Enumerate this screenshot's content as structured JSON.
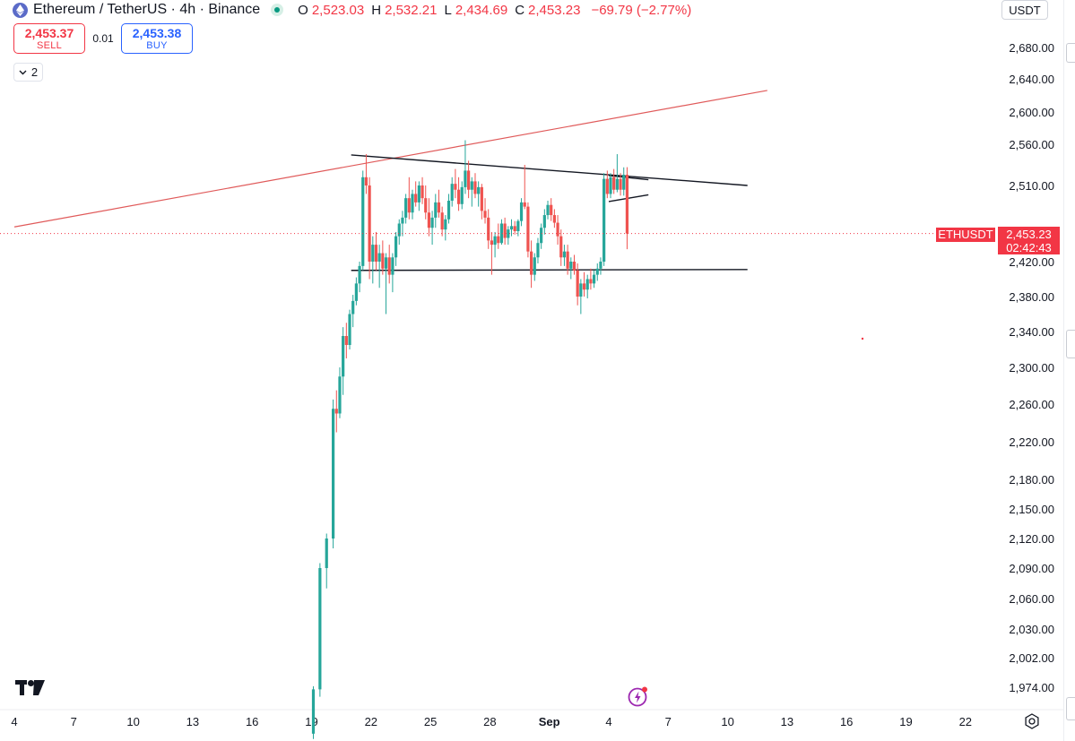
{
  "header": {
    "symbol_title": "Ethereum / TetherUS · 4h · Binance",
    "ohlc": [
      {
        "key": "O",
        "value": "2,523.03"
      },
      {
        "key": "H",
        "value": "2,532.21"
      },
      {
        "key": "L",
        "value": "2,434.69"
      },
      {
        "key": "C",
        "value": "2,453.23"
      },
      {
        "key": "",
        "value": "−69.79 (−2.77%)"
      }
    ]
  },
  "trade": {
    "sell_price": "2,453.37",
    "sell_label": "SELL",
    "spread": "0.01",
    "buy_price": "2,453.38",
    "buy_label": "BUY"
  },
  "indicators_toggle": {
    "count": "2"
  },
  "currency_selector": {
    "value": "USDT"
  },
  "price_badge": {
    "symbol": "ETHUSDT",
    "price": "2,453.23",
    "countdown": "02:42:43"
  },
  "colors": {
    "up": "#26a69a",
    "down": "#ef5350",
    "down_text": "#f23645",
    "buy": "#2962ff",
    "trendline": "#e05a5a",
    "pattern_lines": "#131722",
    "price_line": "#f23645"
  },
  "icons": [
    "ethereum-icon",
    "market-status-icon",
    "chevron-down-icon",
    "tradingview-logo-icon",
    "lightning-icon",
    "settings-gear-icon"
  ],
  "chart_data": {
    "type": "candlestick",
    "title": "Ethereum / TetherUS · 4h · Binance",
    "x_tick_labels": [
      "4",
      "7",
      "10",
      "13",
      "16",
      "19",
      "22",
      "25",
      "28",
      "Sep",
      "4",
      "7",
      "10",
      "13",
      "16",
      "19",
      "22"
    ],
    "y_tick_labels": [
      "2,680.00",
      "2,640.00",
      "2,600.00",
      "2,560.00",
      "2,510.00",
      "2,420.00",
      "2,380.00",
      "2,340.00",
      "2,300.00",
      "2,260.00",
      "2,220.00",
      "2,180.00",
      "2,150.00",
      "2,120.00",
      "2,090.00",
      "2,060.00",
      "2,030.00",
      "2,002.00",
      "1,974.00"
    ],
    "last_price": 2453.23,
    "drawings": [
      {
        "name": "rising-trendline",
        "color": "#e05a5a",
        "from": {
          "date": "Aug 4",
          "price": 2461
        },
        "to": {
          "date": "Sep 11",
          "price": 2626
        }
      },
      {
        "name": "descending-resistance",
        "color": "#131722",
        "from": {
          "date": "Aug 21",
          "price": 2547
        },
        "to": {
          "date": "Sep 10",
          "price": 2510
        }
      },
      {
        "name": "support",
        "color": "#131722",
        "from": {
          "date": "Aug 21",
          "price": 2410
        },
        "to": {
          "date": "Sep 10",
          "price": 2411
        }
      },
      {
        "name": "flag-upper",
        "color": "#131722",
        "from": {
          "date": "Sep 3",
          "price": 2522
        },
        "to": {
          "date": "Sep 5",
          "price": 2517
        }
      },
      {
        "name": "flag-lower",
        "color": "#131722",
        "from": {
          "date": "Sep 3",
          "price": 2491
        },
        "to": {
          "date": "Sep 5",
          "price": 2499
        }
      }
    ],
    "candles": [
      {
        "date": "Aug 19",
        "o": 1930,
        "h": 1975,
        "l": 1925,
        "c": 1972
      },
      {
        "date": "Aug 19",
        "o": 1972,
        "h": 2095,
        "l": 1965,
        "c": 2090
      },
      {
        "date": "Aug 19",
        "o": 2090,
        "h": 2125,
        "l": 2070,
        "c": 2120
      },
      {
        "date": "Aug 20",
        "o": 2120,
        "h": 2265,
        "l": 2110,
        "c": 2255
      },
      {
        "date": "Aug 20",
        "o": 2255,
        "h": 2275,
        "l": 2230,
        "c": 2250
      },
      {
        "date": "Aug 20",
        "o": 2250,
        "h": 2300,
        "l": 2245,
        "c": 2290
      },
      {
        "date": "Aug 20",
        "o": 2290,
        "h": 2345,
        "l": 2270,
        "c": 2335
      },
      {
        "date": "Aug 20",
        "o": 2335,
        "h": 2350,
        "l": 2310,
        "c": 2325
      },
      {
        "date": "Aug 20",
        "o": 2325,
        "h": 2365,
        "l": 2320,
        "c": 2360
      },
      {
        "date": "Aug 21",
        "o": 2360,
        "h": 2382,
        "l": 2345,
        "c": 2375
      },
      {
        "date": "Aug 21",
        "o": 2375,
        "h": 2402,
        "l": 2370,
        "c": 2395
      },
      {
        "date": "Aug 21",
        "o": 2395,
        "h": 2420,
        "l": 2385,
        "c": 2415
      },
      {
        "date": "Aug 21",
        "o": 2415,
        "h": 2528,
        "l": 2410,
        "c": 2520
      },
      {
        "date": "Aug 21",
        "o": 2520,
        "h": 2548,
        "l": 2500,
        "c": 2510
      },
      {
        "date": "Aug 21",
        "o": 2510,
        "h": 2520,
        "l": 2400,
        "c": 2420
      },
      {
        "date": "Aug 22",
        "o": 2420,
        "h": 2450,
        "l": 2395,
        "c": 2440
      },
      {
        "date": "Aug 22",
        "o": 2440,
        "h": 2455,
        "l": 2410,
        "c": 2420
      },
      {
        "date": "Aug 22",
        "o": 2420,
        "h": 2440,
        "l": 2390,
        "c": 2430
      },
      {
        "date": "Aug 22",
        "o": 2430,
        "h": 2445,
        "l": 2405,
        "c": 2412
      },
      {
        "date": "Aug 22",
        "o": 2412,
        "h": 2430,
        "l": 2360,
        "c": 2425
      },
      {
        "date": "Aug 22",
        "o": 2425,
        "h": 2440,
        "l": 2395,
        "c": 2405
      },
      {
        "date": "Aug 23",
        "o": 2405,
        "h": 2430,
        "l": 2385,
        "c": 2425
      },
      {
        "date": "Aug 23",
        "o": 2425,
        "h": 2455,
        "l": 2415,
        "c": 2450
      },
      {
        "date": "Aug 23",
        "o": 2450,
        "h": 2470,
        "l": 2440,
        "c": 2465
      },
      {
        "date": "Aug 23",
        "o": 2465,
        "h": 2480,
        "l": 2450,
        "c": 2472
      },
      {
        "date": "Aug 23",
        "o": 2472,
        "h": 2500,
        "l": 2465,
        "c": 2495
      },
      {
        "date": "Aug 23",
        "o": 2495,
        "h": 2520,
        "l": 2470,
        "c": 2478
      },
      {
        "date": "Aug 24",
        "o": 2478,
        "h": 2505,
        "l": 2470,
        "c": 2500
      },
      {
        "date": "Aug 24",
        "o": 2500,
        "h": 2515,
        "l": 2485,
        "c": 2490
      },
      {
        "date": "Aug 24",
        "o": 2490,
        "h": 2515,
        "l": 2480,
        "c": 2510
      },
      {
        "date": "Aug 24",
        "o": 2510,
        "h": 2520,
        "l": 2488,
        "c": 2495
      },
      {
        "date": "Aug 24",
        "o": 2495,
        "h": 2510,
        "l": 2470,
        "c": 2478
      },
      {
        "date": "Aug 24",
        "o": 2478,
        "h": 2495,
        "l": 2450,
        "c": 2460
      },
      {
        "date": "Aug 25",
        "o": 2460,
        "h": 2480,
        "l": 2440,
        "c": 2472
      },
      {
        "date": "Aug 25",
        "o": 2472,
        "h": 2500,
        "l": 2460,
        "c": 2490
      },
      {
        "date": "Aug 25",
        "o": 2490,
        "h": 2505,
        "l": 2472,
        "c": 2478
      },
      {
        "date": "Aug 25",
        "o": 2478,
        "h": 2485,
        "l": 2450,
        "c": 2458
      },
      {
        "date": "Aug 25",
        "o": 2458,
        "h": 2475,
        "l": 2445,
        "c": 2470
      },
      {
        "date": "Aug 25",
        "o": 2470,
        "h": 2500,
        "l": 2465,
        "c": 2492
      },
      {
        "date": "Aug 26",
        "o": 2492,
        "h": 2520,
        "l": 2485,
        "c": 2512
      },
      {
        "date": "Aug 26",
        "o": 2512,
        "h": 2530,
        "l": 2495,
        "c": 2505
      },
      {
        "date": "Aug 26",
        "o": 2505,
        "h": 2520,
        "l": 2480,
        "c": 2488
      },
      {
        "date": "Aug 26",
        "o": 2488,
        "h": 2515,
        "l": 2482,
        "c": 2508
      },
      {
        "date": "Aug 26",
        "o": 2508,
        "h": 2565,
        "l": 2500,
        "c": 2528
      },
      {
        "date": "Aug 26",
        "o": 2528,
        "h": 2540,
        "l": 2495,
        "c": 2505
      },
      {
        "date": "Aug 27",
        "o": 2505,
        "h": 2520,
        "l": 2485,
        "c": 2515
      },
      {
        "date": "Aug 27",
        "o": 2515,
        "h": 2525,
        "l": 2495,
        "c": 2500
      },
      {
        "date": "Aug 27",
        "o": 2500,
        "h": 2515,
        "l": 2485,
        "c": 2508
      },
      {
        "date": "Aug 27",
        "o": 2508,
        "h": 2512,
        "l": 2470,
        "c": 2480
      },
      {
        "date": "Aug 27",
        "o": 2480,
        "h": 2495,
        "l": 2465,
        "c": 2472
      },
      {
        "date": "Aug 27",
        "o": 2472,
        "h": 2482,
        "l": 2435,
        "c": 2445
      },
      {
        "date": "Aug 28",
        "o": 2445,
        "h": 2455,
        "l": 2405,
        "c": 2440
      },
      {
        "date": "Aug 28",
        "o": 2440,
        "h": 2455,
        "l": 2425,
        "c": 2450
      },
      {
        "date": "Aug 28",
        "o": 2450,
        "h": 2465,
        "l": 2435,
        "c": 2442
      },
      {
        "date": "Aug 28",
        "o": 2442,
        "h": 2470,
        "l": 2440,
        "c": 2465
      },
      {
        "date": "Aug 28",
        "o": 2465,
        "h": 2472,
        "l": 2440,
        "c": 2448
      },
      {
        "date": "Aug 28",
        "o": 2448,
        "h": 2462,
        "l": 2440,
        "c": 2458
      },
      {
        "date": "Aug 29",
        "o": 2458,
        "h": 2470,
        "l": 2450,
        "c": 2462
      },
      {
        "date": "Aug 29",
        "o": 2462,
        "h": 2468,
        "l": 2452,
        "c": 2456
      },
      {
        "date": "Aug 29",
        "o": 2456,
        "h": 2470,
        "l": 2450,
        "c": 2468
      },
      {
        "date": "Aug 29",
        "o": 2468,
        "h": 2495,
        "l": 2462,
        "c": 2490
      },
      {
        "date": "Aug 29",
        "o": 2490,
        "h": 2535,
        "l": 2482,
        "c": 2485
      },
      {
        "date": "Aug 29",
        "o": 2485,
        "h": 2490,
        "l": 2425,
        "c": 2432
      },
      {
        "date": "Aug 30",
        "o": 2432,
        "h": 2445,
        "l": 2390,
        "c": 2405
      },
      {
        "date": "Aug 30",
        "o": 2405,
        "h": 2430,
        "l": 2398,
        "c": 2425
      },
      {
        "date": "Aug 30",
        "o": 2425,
        "h": 2448,
        "l": 2418,
        "c": 2442
      },
      {
        "date": "Aug 30",
        "o": 2442,
        "h": 2465,
        "l": 2435,
        "c": 2460
      },
      {
        "date": "Aug 30",
        "o": 2460,
        "h": 2482,
        "l": 2452,
        "c": 2475
      },
      {
        "date": "Aug 30",
        "o": 2475,
        "h": 2492,
        "l": 2470,
        "c": 2487
      },
      {
        "date": "Aug 31",
        "o": 2487,
        "h": 2495,
        "l": 2468,
        "c": 2475
      },
      {
        "date": "Aug 31",
        "o": 2475,
        "h": 2482,
        "l": 2460,
        "c": 2466
      },
      {
        "date": "Aug 31",
        "o": 2466,
        "h": 2475,
        "l": 2440,
        "c": 2450
      },
      {
        "date": "Aug 31",
        "o": 2450,
        "h": 2458,
        "l": 2415,
        "c": 2425
      },
      {
        "date": "Aug 31",
        "o": 2425,
        "h": 2440,
        "l": 2415,
        "c": 2432
      },
      {
        "date": "Aug 31",
        "o": 2432,
        "h": 2440,
        "l": 2405,
        "c": 2412
      },
      {
        "date": "Sep 1",
        "o": 2412,
        "h": 2425,
        "l": 2400,
        "c": 2420
      },
      {
        "date": "Sep 1",
        "o": 2420,
        "h": 2428,
        "l": 2405,
        "c": 2410
      },
      {
        "date": "Sep 1",
        "o": 2410,
        "h": 2418,
        "l": 2370,
        "c": 2380
      },
      {
        "date": "Sep 1",
        "o": 2380,
        "h": 2400,
        "l": 2360,
        "c": 2395
      },
      {
        "date": "Sep 1",
        "o": 2395,
        "h": 2408,
        "l": 2380,
        "c": 2388
      },
      {
        "date": "Sep 1",
        "o": 2388,
        "h": 2405,
        "l": 2378,
        "c": 2400
      },
      {
        "date": "Sep 2",
        "o": 2400,
        "h": 2412,
        "l": 2388,
        "c": 2395
      },
      {
        "date": "Sep 2",
        "o": 2395,
        "h": 2410,
        "l": 2390,
        "c": 2405
      },
      {
        "date": "Sep 2",
        "o": 2405,
        "h": 2418,
        "l": 2398,
        "c": 2412
      },
      {
        "date": "Sep 2",
        "o": 2412,
        "h": 2425,
        "l": 2405,
        "c": 2420
      },
      {
        "date": "Sep 2",
        "o": 2420,
        "h": 2525,
        "l": 2415,
        "c": 2518
      },
      {
        "date": "Sep 2",
        "o": 2518,
        "h": 2528,
        "l": 2495,
        "c": 2500
      },
      {
        "date": "Sep 3",
        "o": 2500,
        "h": 2525,
        "l": 2495,
        "c": 2520
      },
      {
        "date": "Sep 3",
        "o": 2520,
        "h": 2530,
        "l": 2500,
        "c": 2505
      },
      {
        "date": "Sep 3",
        "o": 2505,
        "h": 2548,
        "l": 2502,
        "c": 2518
      },
      {
        "date": "Sep 3",
        "o": 2518,
        "h": 2525,
        "l": 2498,
        "c": 2505
      },
      {
        "date": "Sep 3",
        "o": 2505,
        "h": 2532,
        "l": 2498,
        "c": 2523
      },
      {
        "date": "Sep 3",
        "o": 2523.03,
        "h": 2532.21,
        "l": 2434.69,
        "c": 2453.23
      }
    ]
  }
}
